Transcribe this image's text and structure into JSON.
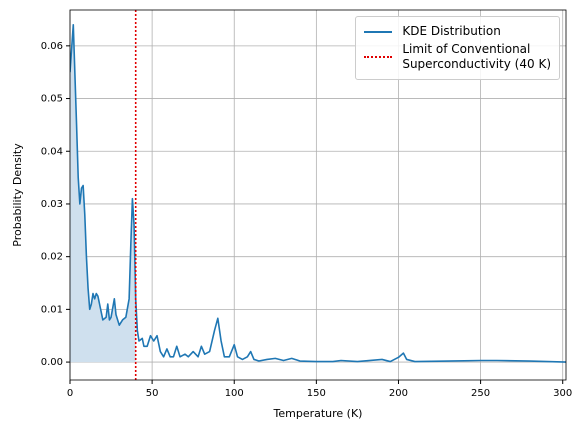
{
  "chart_data": {
    "type": "line",
    "x_label": "Temperature (K)",
    "y_label": "Probability Density",
    "x": [
      0,
      2,
      4,
      5,
      6,
      7,
      8,
      9,
      10,
      11,
      12,
      13,
      14,
      15,
      16,
      17,
      18,
      20,
      22,
      23,
      24,
      25,
      27,
      28,
      30,
      32,
      34,
      36,
      37,
      38,
      39,
      40,
      41,
      42,
      44,
      45,
      47,
      49,
      51,
      53,
      55,
      57,
      59,
      61,
      63,
      65,
      67,
      70,
      72,
      75,
      78,
      80,
      82,
      85,
      88,
      90,
      92,
      94,
      97,
      100,
      102,
      105,
      108,
      110,
      112,
      115,
      120,
      125,
      130,
      135,
      140,
      150,
      160,
      165,
      175,
      190,
      195,
      200,
      203,
      205,
      210,
      230,
      250,
      260,
      280,
      302
    ],
    "series": [
      {
        "name": "KDE Distribution",
        "color": "#1f77b4",
        "fill": "#cfe0ee",
        "values": [
          0.055,
          0.064,
          0.045,
          0.035,
          0.03,
          0.033,
          0.0335,
          0.028,
          0.02,
          0.014,
          0.01,
          0.011,
          0.013,
          0.012,
          0.013,
          0.0125,
          0.011,
          0.008,
          0.0085,
          0.011,
          0.008,
          0.0085,
          0.012,
          0.009,
          0.007,
          0.008,
          0.0085,
          0.012,
          0.022,
          0.031,
          0.026,
          0.012,
          0.006,
          0.004,
          0.0045,
          0.003,
          0.003,
          0.005,
          0.004,
          0.005,
          0.002,
          0.001,
          0.0025,
          0.001,
          0.001,
          0.003,
          0.001,
          0.0015,
          0.001,
          0.002,
          0.001,
          0.003,
          0.0015,
          0.002,
          0.006,
          0.0083,
          0.004,
          0.001,
          0.001,
          0.0033,
          0.001,
          0.0005,
          0.001,
          0.002,
          0.0005,
          0.0002,
          0.0005,
          0.0007,
          0.0003,
          0.0007,
          0.0002,
          0.0001,
          0.0001,
          0.0003,
          0.0001,
          0.0005,
          0.0001,
          0.0009,
          0.0017,
          0.0005,
          0.0001,
          0.0002,
          0.0003,
          0.0003,
          0.0002,
          0
        ]
      }
    ],
    "vline": {
      "x": 40,
      "color": "#e00000",
      "label": "Limit of Conventional\nSuperconductivity (40 K)"
    },
    "xlim": [
      0,
      302
    ],
    "ylim": [
      -0.0034,
      0.0668
    ],
    "xticks": [
      0,
      50,
      100,
      150,
      200,
      250,
      300
    ],
    "yticks": [
      {
        "value": 0,
        "label": "0.00"
      },
      {
        "value": 0.01,
        "label": "0.01"
      },
      {
        "value": 0.02,
        "label": "0.02"
      },
      {
        "value": 0.03,
        "label": "0.03"
      },
      {
        "value": 0.04,
        "label": "0.04"
      },
      {
        "value": 0.05,
        "label": "0.05"
      },
      {
        "value": 0.06,
        "label": "0.06"
      }
    ],
    "grid": true,
    "legend": "upper right"
  }
}
